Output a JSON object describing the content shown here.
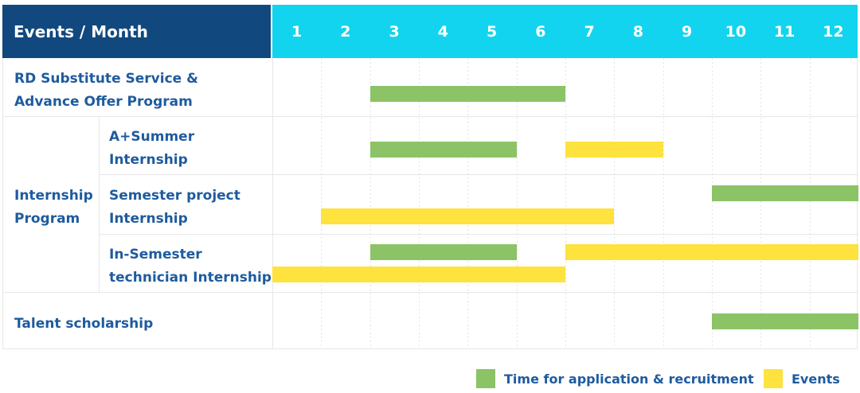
{
  "header": {
    "title": "Events / Month"
  },
  "colors": {
    "navy": "#11497e",
    "cyan": "#13d4ee",
    "green": "#8bc366",
    "yellow": "#fee23d",
    "label_blue": "#1e5b9e"
  },
  "chart_data": {
    "type": "bar",
    "subtype": "gantt",
    "title": "Events / Month",
    "months": [
      "1",
      "2",
      "3",
      "4",
      "5",
      "6",
      "7",
      "8",
      "9",
      "10",
      "11",
      "12"
    ],
    "note": "start/end are month positions on the 1-12 axis; end is exclusive",
    "rows": [
      {
        "label": "RD Substitute Service &\nAdvance Offer Program",
        "group": null,
        "bars": [
          {
            "kind": "application",
            "lane": "single",
            "start": 3,
            "end": 7
          }
        ]
      },
      {
        "label": "A+Summer\nInternship",
        "group": "Internship\nProgram",
        "bars": [
          {
            "kind": "application",
            "lane": "single",
            "start": 3,
            "end": 6
          },
          {
            "kind": "events",
            "lane": "single",
            "start": 7,
            "end": 9
          }
        ]
      },
      {
        "label": "Semester project\nInternship",
        "group": "Internship\nProgram",
        "bars": [
          {
            "kind": "application",
            "lane": "top",
            "start": 10,
            "end": 13
          },
          {
            "kind": "events",
            "lane": "bottom",
            "start": 2,
            "end": 8
          }
        ]
      },
      {
        "label": "In-Semester\ntechnician Internship",
        "group": "Internship\nProgram",
        "bars": [
          {
            "kind": "application",
            "lane": "top",
            "start": 3,
            "end": 6
          },
          {
            "kind": "events",
            "lane": "top",
            "start": 7,
            "end": 13
          },
          {
            "kind": "events",
            "lane": "bottom",
            "start": 1,
            "end": 7
          }
        ]
      },
      {
        "label": "Talent scholarship",
        "group": null,
        "bars": [
          {
            "kind": "application",
            "lane": "single",
            "start": 10,
            "end": 13
          }
        ]
      }
    ],
    "legend": [
      {
        "label": "Time for application & recruitment",
        "kind": "application"
      },
      {
        "label": "Events",
        "kind": "events"
      }
    ]
  }
}
